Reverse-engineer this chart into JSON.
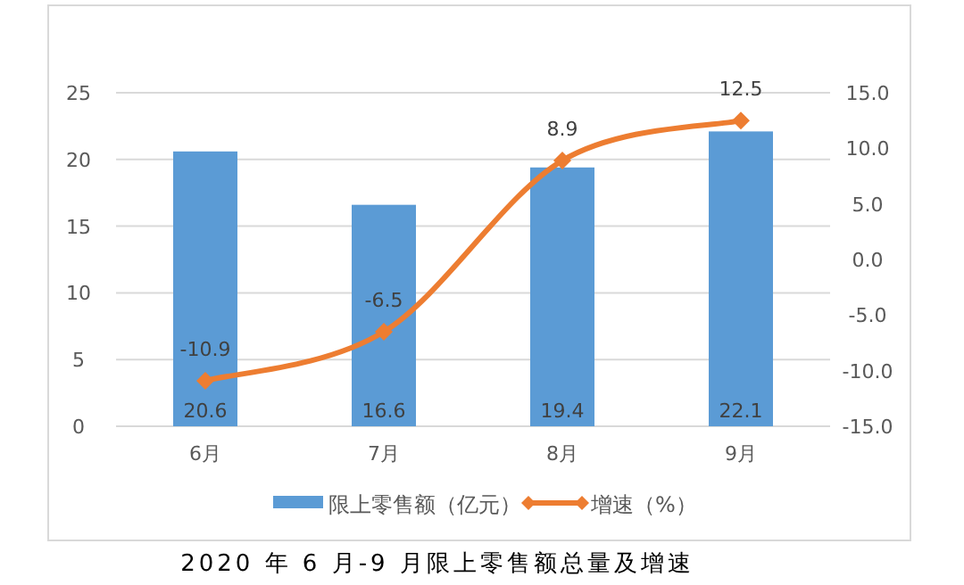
{
  "chart_data": {
    "type": "bar",
    "title": "2020 年 6 月-9 月限上零售额总量及增速",
    "categories": [
      "6月",
      "7月",
      "8月",
      "9月"
    ],
    "series": [
      {
        "name": "限上零售额（亿元）",
        "color": "#5b9bd5",
        "values": [
          20.6,
          16.6,
          19.4,
          22.1
        ]
      },
      {
        "name": "增速（%）",
        "type": "line",
        "axis": "y2",
        "color": "#ed7d31",
        "marker": "diamond",
        "values": [
          -10.9,
          -6.5,
          8.9,
          12.5
        ]
      }
    ],
    "ylim": [
      0,
      25
    ],
    "yticks": [
      0,
      5,
      10,
      15,
      20,
      25
    ],
    "y2lim": [
      -15,
      15
    ],
    "y2ticks": [
      {
        "value": -15,
        "label": "-15.0"
      },
      {
        "value": -10,
        "label": "-10.0"
      },
      {
        "value": -5,
        "label": "-5.0"
      },
      {
        "value": 0,
        "label": "0.0"
      },
      {
        "value": 5,
        "label": "5.0"
      },
      {
        "value": 10,
        "label": "10.0"
      },
      {
        "value": 15,
        "label": "15.0"
      }
    ],
    "grid": "y",
    "legend": "bottom",
    "data_labels": true
  }
}
